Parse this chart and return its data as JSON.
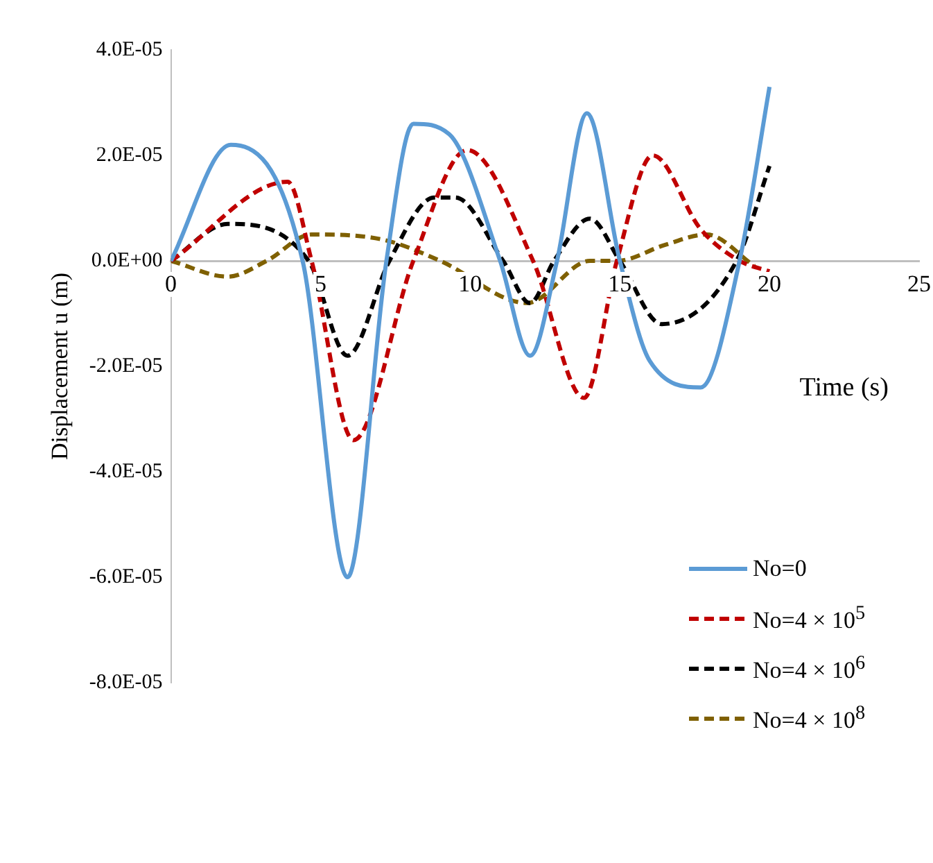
{
  "chart_data": {
    "type": "line",
    "xlabel": "Time (s)",
    "ylabel": "Displacement u (m)",
    "xlim": [
      0,
      25
    ],
    "xticks": [
      0,
      5,
      10,
      15,
      20,
      25
    ],
    "ylim": [
      -8e-05,
      4e-05
    ],
    "yticks": [
      {
        "value": -8e-05,
        "label": "-8.0E-05"
      },
      {
        "value": -6e-05,
        "label": "-6.0E-05"
      },
      {
        "value": -4e-05,
        "label": "-4.0E-05"
      },
      {
        "value": -2e-05,
        "label": "-2.0E-05"
      },
      {
        "value": 0,
        "label": "0.0E+00"
      },
      {
        "value": 2e-05,
        "label": "2.0E-05"
      },
      {
        "value": 4e-05,
        "label": "4.0E-05"
      }
    ],
    "grid": false,
    "legend": "bottom right",
    "marker": "none",
    "series": [
      {
        "name": "No=0",
        "color": "#5b9bd5",
        "line_style": "solid",
        "x": [
          0,
          2,
          4.4,
          5.9,
          7.2,
          8.1,
          9.3,
          11,
          12,
          12.9,
          13.9,
          15,
          16,
          17.7,
          19,
          20
        ],
        "values": [
          0,
          2.2e-05,
          0,
          -6e-05,
          0,
          2.6e-05,
          2.4e-05,
          0,
          -1.8e-05,
          0,
          2.8e-05,
          0,
          -1.9e-05,
          -2.4e-05,
          0,
          3.3e-05
        ]
      },
      {
        "name": "No=4 × 10$^{5}$",
        "color": "#c00000",
        "line_style": "dashed",
        "x": [
          0,
          3.9,
          4.7,
          6.1,
          8.1,
          9.9,
          12.1,
          13.8,
          14.9,
          16.1,
          17.7,
          19,
          20
        ],
        "values": [
          0,
          1.5e-05,
          0,
          -3.4e-05,
          0,
          2.1e-05,
          0,
          -2.6e-05,
          0,
          2e-05,
          6e-06,
          0,
          -2e-06
        ]
      },
      {
        "name": "No=4 × 10$^{6}$",
        "color": "#000000",
        "line_style": "dashed",
        "x": [
          0,
          1.9,
          4.6,
          5.9,
          7.3,
          8.8,
          9.5,
          11.1,
          12,
          12.8,
          14,
          15,
          16.4,
          18.9,
          20
        ],
        "values": [
          0,
          7e-06,
          0,
          -1.8e-05,
          0,
          1.2e-05,
          1.2e-05,
          0,
          -8e-06,
          0,
          8e-06,
          0,
          -1.2e-05,
          0,
          1.8e-05
        ]
      },
      {
        "name": "No=4 × 10$^{8}$",
        "color": "#7f6000",
        "line_style": "dashed",
        "x": [
          0,
          1.9,
          3.2,
          4.7,
          7.1,
          9,
          11.9,
          14,
          14.9,
          16.5,
          17.9,
          19.5
        ],
        "values": [
          0,
          -3e-06,
          0,
          5e-06,
          4e-06,
          0,
          -8e-06,
          0,
          0,
          3e-06,
          5e-06,
          -1e-06
        ]
      }
    ]
  }
}
